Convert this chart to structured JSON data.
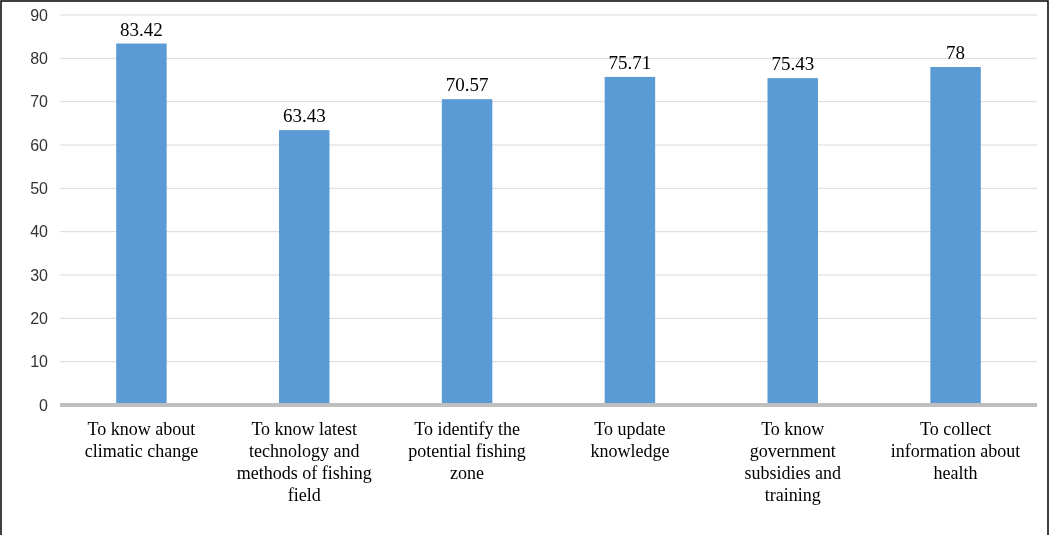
{
  "chart_data": {
    "type": "bar",
    "categories": [
      "To know about climatic change",
      "To know latest technology and methods of fishing field",
      "To identify the potential fishing zone",
      "To update knowledge",
      "To know government subsidies and training",
      "To collect information about health"
    ],
    "values": [
      83.42,
      63.43,
      70.57,
      75.71,
      75.43,
      78
    ],
    "color": "#5b9bd5",
    "ylim": [
      0,
      90
    ],
    "yticks": [
      0,
      10,
      20,
      30,
      40,
      50,
      60,
      70,
      80,
      90
    ],
    "grid": "y",
    "data_labels": true
  }
}
